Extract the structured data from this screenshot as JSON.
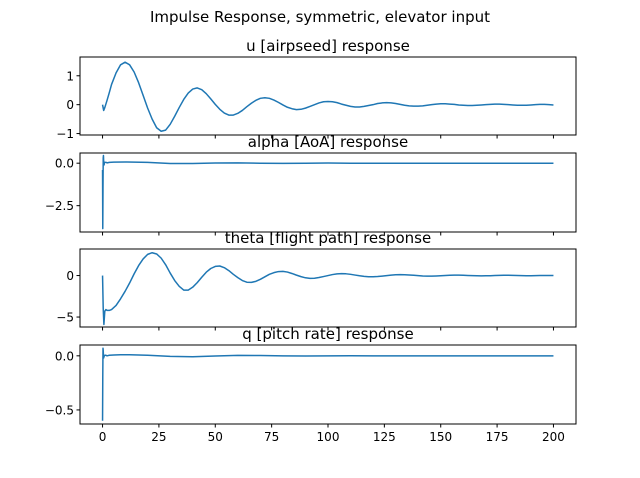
{
  "figure": {
    "suptitle": "Impulse Response, symmetric, elevator input",
    "line_color": "#1f77b4"
  },
  "chart_data": [
    {
      "type": "line",
      "title": "u [airpseed] response",
      "xlim": [
        -10,
        210
      ],
      "ylim": [
        -1.05,
        1.65
      ],
      "yticks": [
        -1,
        0,
        1
      ],
      "ytick_labels": [
        "−1",
        "0",
        "1"
      ],
      "xticks": [
        0,
        25,
        50,
        75,
        100,
        125,
        150,
        175,
        200
      ],
      "xtick_labels": [],
      "x": [
        0,
        0.5,
        1,
        2,
        3,
        4,
        6,
        8,
        10,
        12,
        14,
        16,
        18,
        20,
        22,
        24,
        26,
        28,
        30,
        32,
        34,
        36,
        38,
        40,
        42,
        44,
        46,
        48,
        50,
        52,
        54,
        56,
        58,
        60,
        62,
        64,
        66,
        68,
        70,
        72,
        74,
        76,
        78,
        80,
        82,
        84,
        86,
        88,
        90,
        92,
        94,
        96,
        98,
        100,
        102,
        104,
        106,
        108,
        110,
        112,
        114,
        116,
        118,
        120,
        122,
        124,
        126,
        128,
        130,
        132,
        134,
        136,
        138,
        140,
        142,
        144,
        146,
        148,
        150,
        152,
        154,
        156,
        158,
        160,
        162,
        164,
        166,
        168,
        170,
        172,
        174,
        176,
        178,
        180,
        182,
        184,
        186,
        188,
        190,
        192,
        194,
        196,
        198,
        200
      ],
      "y": [
        0,
        -0.2,
        -0.1,
        0.15,
        0.42,
        0.7,
        1.1,
        1.38,
        1.47,
        1.38,
        1.13,
        0.76,
        0.32,
        -0.12,
        -0.5,
        -0.8,
        -0.92,
        -0.88,
        -0.68,
        -0.4,
        -0.1,
        0.18,
        0.4,
        0.54,
        0.58,
        0.52,
        0.38,
        0.2,
        0.01,
        -0.16,
        -0.29,
        -0.36,
        -0.36,
        -0.3,
        -0.2,
        -0.07,
        0.05,
        0.15,
        0.22,
        0.24,
        0.22,
        0.16,
        0.08,
        -0.01,
        -0.09,
        -0.14,
        -0.17,
        -0.16,
        -0.12,
        -0.06,
        0.0,
        0.06,
        0.1,
        0.11,
        0.1,
        0.07,
        0.02,
        -0.02,
        -0.06,
        -0.08,
        -0.08,
        -0.06,
        -0.03,
        0.0,
        0.04,
        0.06,
        0.07,
        0.06,
        0.04,
        0.01,
        -0.02,
        -0.04,
        -0.05,
        -0.05,
        -0.04,
        -0.02,
        0.0,
        0.02,
        0.03,
        0.03,
        0.02,
        0.01,
        -0.01,
        -0.02,
        -0.03,
        -0.03,
        -0.02,
        -0.01,
        0.0,
        0.01,
        0.02,
        0.02,
        0.01,
        0.0,
        -0.01,
        -0.02,
        -0.02,
        -0.02,
        -0.01,
        0.0,
        0.01,
        0.01,
        0.0,
        -0.01
      ]
    },
    {
      "type": "line",
      "title": "alpha [AoA]  response",
      "xlim": [
        -10,
        210
      ],
      "ylim": [
        -4.05,
        0.6
      ],
      "yticks": [
        -2.5,
        0.0
      ],
      "ytick_labels": [
        "−2.5",
        "0.0"
      ],
      "xticks": [
        0,
        25,
        50,
        75,
        100,
        125,
        150,
        175,
        200
      ],
      "xtick_labels": [],
      "x": [
        0,
        0.1,
        0.2,
        0.3,
        0.4,
        0.5,
        0.6,
        0.7,
        0.8,
        1,
        1.5,
        2,
        3,
        5,
        10,
        20,
        30,
        40,
        50,
        60,
        70,
        80,
        90,
        100,
        110,
        120,
        130,
        140,
        150,
        160,
        170,
        180,
        190,
        200
      ],
      "y": [
        -0.4,
        -3.85,
        -1.5,
        0.3,
        0.45,
        0.1,
        -0.05,
        -0.1,
        0.02,
        0.05,
        0.05,
        0.02,
        0.05,
        0.06,
        0.07,
        0.05,
        -0.02,
        -0.02,
        0.01,
        0.02,
        0.0,
        -0.01,
        0.0,
        0.01,
        0.0,
        0.0,
        0.0,
        0.0,
        0.0,
        0.0,
        0.0,
        0.0,
        0.0,
        0.0
      ]
    },
    {
      "type": "line",
      "title": "theta [flight path] response",
      "xlim": [
        -10,
        210
      ],
      "ylim": [
        -6.2,
        3.2
      ],
      "yticks": [
        -5,
        0
      ],
      "ytick_labels": [
        "−5",
        "0"
      ],
      "xticks": [
        0,
        25,
        50,
        75,
        100,
        125,
        150,
        175,
        200
      ],
      "xtick_labels": [],
      "x": [
        0,
        0.3,
        0.6,
        1,
        1.5,
        2,
        3,
        4,
        6,
        8,
        10,
        12,
        14,
        16,
        18,
        20,
        22,
        24,
        26,
        28,
        30,
        32,
        34,
        36,
        38,
        40,
        42,
        44,
        46,
        48,
        50,
        52,
        54,
        56,
        58,
        60,
        62,
        64,
        66,
        68,
        70,
        72,
        74,
        76,
        78,
        80,
        82,
        84,
        86,
        88,
        90,
        92,
        94,
        96,
        98,
        100,
        102,
        104,
        106,
        108,
        110,
        112,
        114,
        116,
        118,
        120,
        122,
        124,
        126,
        128,
        130,
        132,
        134,
        136,
        138,
        140,
        142,
        144,
        146,
        148,
        150,
        152,
        154,
        156,
        158,
        160,
        162,
        164,
        166,
        168,
        170,
        172,
        174,
        176,
        178,
        180,
        182,
        184,
        186,
        188,
        190,
        192,
        194,
        196,
        198,
        200
      ],
      "y": [
        0,
        -4.0,
        -5.9,
        -4.3,
        -4.1,
        -4.2,
        -4.2,
        -4.1,
        -3.6,
        -2.8,
        -1.9,
        -0.9,
        0.2,
        1.2,
        2.0,
        2.55,
        2.75,
        2.6,
        2.1,
        1.3,
        0.3,
        -0.6,
        -1.3,
        -1.75,
        -1.75,
        -1.4,
        -0.85,
        -0.2,
        0.4,
        0.85,
        1.1,
        1.15,
        0.95,
        0.6,
        0.15,
        -0.25,
        -0.6,
        -0.8,
        -0.82,
        -0.7,
        -0.45,
        -0.15,
        0.15,
        0.35,
        0.48,
        0.5,
        0.42,
        0.25,
        0.05,
        -0.13,
        -0.27,
        -0.34,
        -0.32,
        -0.24,
        -0.12,
        0.0,
        0.12,
        0.2,
        0.23,
        0.21,
        0.15,
        0.06,
        -0.03,
        -0.1,
        -0.14,
        -0.15,
        -0.12,
        -0.07,
        -0.01,
        0.05,
        0.09,
        0.11,
        0.1,
        0.07,
        0.03,
        -0.01,
        -0.05,
        -0.07,
        -0.07,
        -0.05,
        -0.02,
        0.01,
        0.04,
        0.05,
        0.05,
        0.03,
        0.01,
        -0.01,
        -0.03,
        -0.04,
        -0.03,
        -0.02,
        0.0,
        0.02,
        0.03,
        0.03,
        0.02,
        0.0,
        -0.01,
        -0.02,
        -0.02,
        -0.01,
        0.0,
        0.01,
        0.01,
        0.0
      ]
    },
    {
      "type": "line",
      "title": "q [pitch rate] response",
      "xlim": [
        -10,
        210
      ],
      "ylim": [
        -0.63,
        0.1
      ],
      "yticks": [
        -0.5,
        0.0
      ],
      "ytick_labels": [
        "−0.5",
        "0.0"
      ],
      "xticks": [
        0,
        25,
        50,
        75,
        100,
        125,
        150,
        175,
        200
      ],
      "xtick_labels": [
        "0",
        "25",
        "50",
        "75",
        "100",
        "125",
        "150",
        "175",
        "200"
      ],
      "x": [
        0,
        0.1,
        0.2,
        0.3,
        0.4,
        0.5,
        0.6,
        0.8,
        1,
        1.5,
        2,
        3,
        5,
        8,
        12,
        20,
        30,
        40,
        50,
        60,
        70,
        80,
        90,
        100,
        110,
        120,
        130,
        140,
        150,
        160,
        170,
        180,
        190,
        200
      ],
      "y": [
        -0.6,
        -0.2,
        0.07,
        0.05,
        0.0,
        -0.02,
        -0.01,
        0.0,
        0.005,
        0.005,
        0.0,
        0.005,
        0.008,
        0.01,
        0.01,
        0.005,
        -0.005,
        -0.008,
        -0.002,
        0.004,
        0.003,
        -0.001,
        -0.002,
        0.0,
        0.001,
        0.0,
        0.0,
        0.0,
        0.0,
        0.0,
        0.0,
        0.0,
        0.0,
        0.0
      ]
    }
  ]
}
